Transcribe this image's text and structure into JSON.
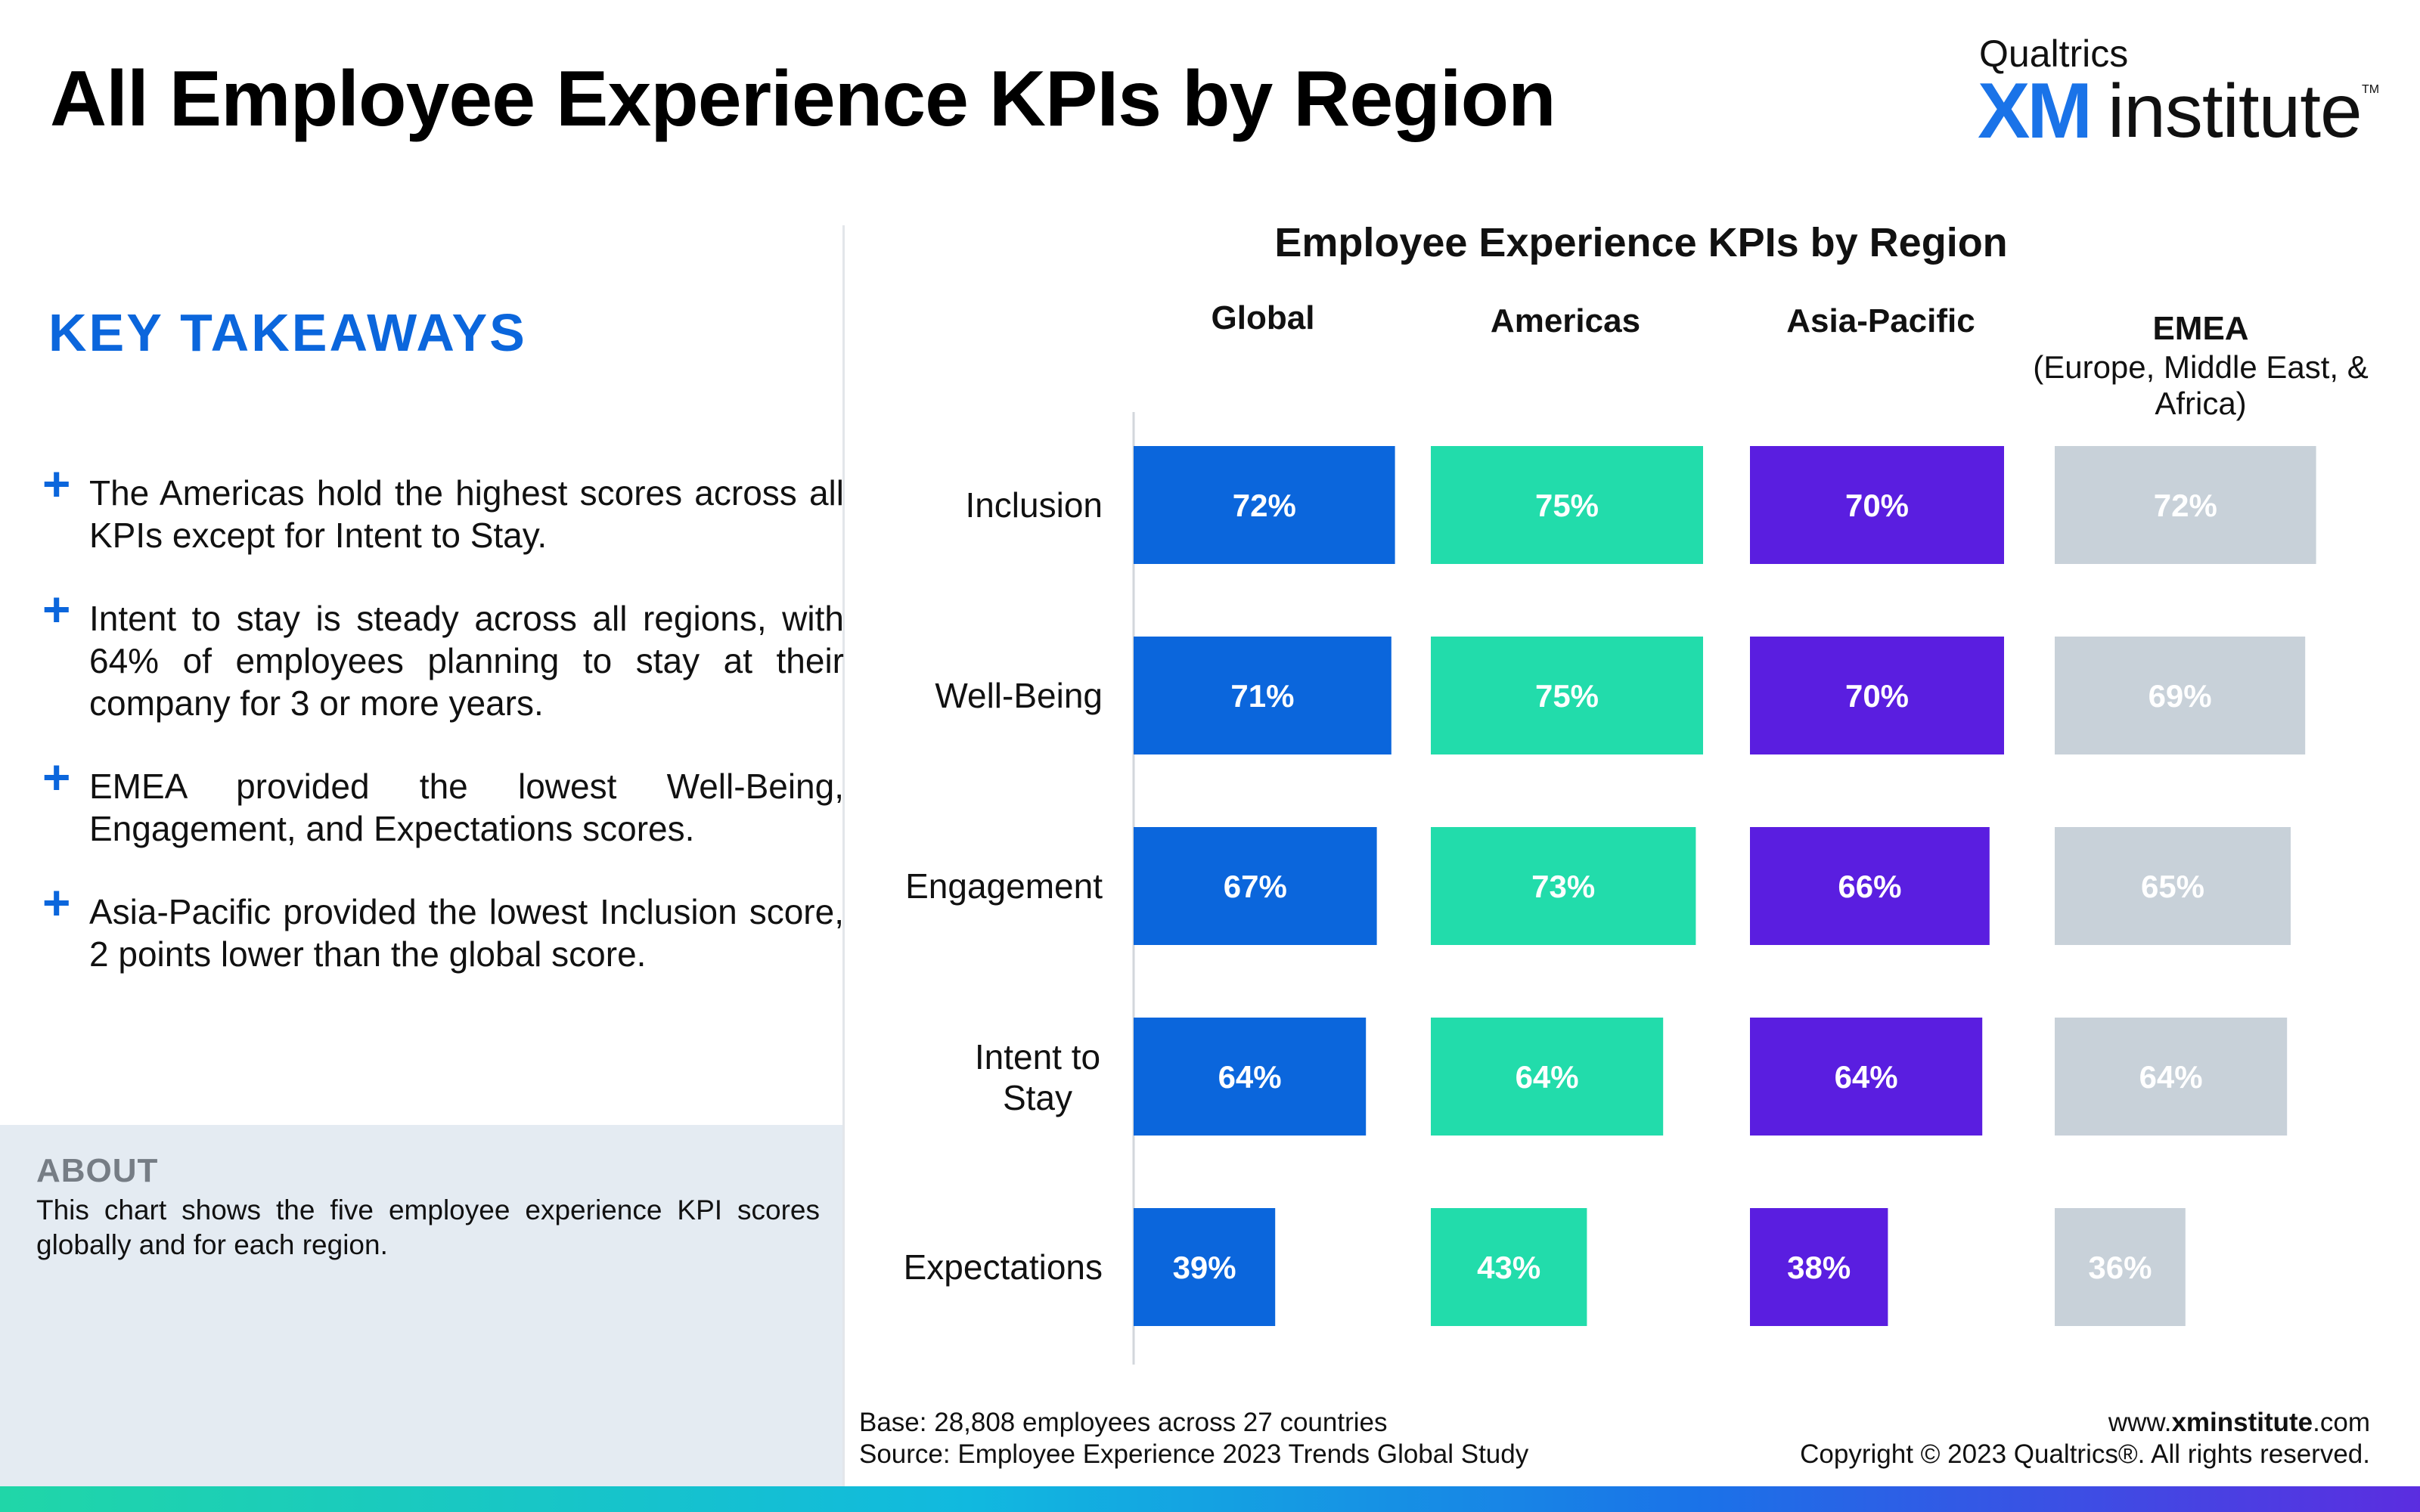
{
  "header": {
    "title": "All Employee Experience KPIs by Region"
  },
  "logo": {
    "brand": "Qualtrics",
    "xm": "XM",
    "institute": "institute",
    "tm": "TM"
  },
  "takeaways": {
    "heading": "KEY TAKEAWAYS",
    "items": [
      "The Americas hold the highest scores across all KPIs except for Intent to Stay.",
      "Intent to stay is steady across all regions, with 64% of employees planning to stay at their company for 3 or more years.",
      "EMEA provided the lowest Well-Being, Engagement, and Expectations scores.",
      "Asia-Pacific provided the lowest Inclusion score, 2 points lower than the global score."
    ]
  },
  "about": {
    "title": "ABOUT",
    "text": "This chart shows the five employee experience KPI scores globally and for each region."
  },
  "chart_data": {
    "type": "bar",
    "title": "Employee Experience KPIs by Region",
    "categories": [
      "Inclusion",
      "Well-Being",
      "Engagement",
      "Intent to Stay",
      "Expectations"
    ],
    "series": [
      {
        "name": "Global",
        "subtitle": "",
        "color": "#0b66dc",
        "values": [
          72,
          71,
          67,
          64,
          39
        ]
      },
      {
        "name": "Americas",
        "subtitle": "",
        "color": "#22dcab",
        "values": [
          75,
          75,
          73,
          64,
          43
        ]
      },
      {
        "name": "Asia-Pacific",
        "subtitle": "",
        "color": "#5a1ee0",
        "values": [
          70,
          70,
          66,
          64,
          38
        ]
      },
      {
        "name": "EMEA",
        "subtitle": "(Europe, Middle East, & Africa)",
        "color": "#c8d1d9",
        "values": [
          72,
          69,
          65,
          64,
          36
        ]
      }
    ],
    "value_suffix": "%",
    "orientation": "horizontal small multiples"
  },
  "footer": {
    "base": "Base: 28,808 employees across 27 countries",
    "source": "Source: Employee Experience 2023 Trends Global Study",
    "site_prefix": "www.",
    "site_bold": "xminstitute",
    "site_suffix": ".com",
    "copyright": "Copyright © 2023 Qualtrics®. All rights reserved."
  }
}
